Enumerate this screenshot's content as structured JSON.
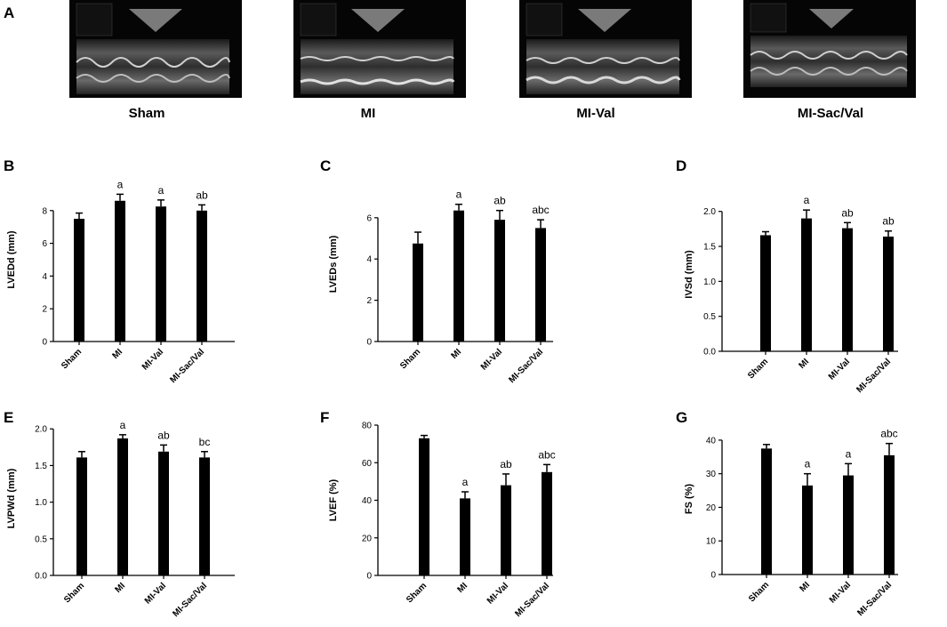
{
  "echo_panel": {
    "letter": "A",
    "images": [
      {
        "label": "Sham"
      },
      {
        "label": "MI"
      },
      {
        "label": "MI-Val"
      },
      {
        "label": "MI-Sac/Val"
      }
    ]
  },
  "chart_data": [
    {
      "panel": "B",
      "type": "bar",
      "categories": [
        "Sham",
        "MI",
        "MI-Val",
        "MI-Sac/Val"
      ],
      "values": [
        7.5,
        8.6,
        8.25,
        8.0
      ],
      "errors": [
        0.35,
        0.4,
        0.4,
        0.35
      ],
      "annotations": [
        "",
        "a",
        "a",
        "ab"
      ],
      "ylabel": "LVEDd (mm)",
      "ylim": [
        0,
        10
      ],
      "yticks": [
        "0",
        "2",
        "4",
        "6",
        "8"
      ],
      "ytick_values": [
        0,
        2,
        4,
        6,
        8
      ],
      "bar_color": "#000000",
      "grid": false
    },
    {
      "panel": "C",
      "type": "bar",
      "categories": [
        "Sham",
        "MI",
        "MI-Val",
        "MI-Sac/Val"
      ],
      "values": [
        4.75,
        6.35,
        5.9,
        5.5
      ],
      "errors": [
        0.55,
        0.3,
        0.45,
        0.4
      ],
      "annotations": [
        "",
        "a",
        "ab",
        "abc"
      ],
      "ylabel": "LVEDs (mm)",
      "ylim": [
        0,
        7.5
      ],
      "yticks": [
        "0",
        "2",
        "4",
        "6"
      ],
      "ytick_values": [
        0,
        2,
        4,
        6
      ],
      "bar_color": "#000000",
      "grid": false
    },
    {
      "panel": "D",
      "type": "bar",
      "categories": [
        "Sham",
        "MI",
        "MI-Val",
        "MI-Sac/Val"
      ],
      "values": [
        1.66,
        1.9,
        1.76,
        1.64
      ],
      "errors": [
        0.05,
        0.12,
        0.08,
        0.08
      ],
      "annotations": [
        "",
        "a",
        "ab",
        "ab"
      ],
      "ylabel": "IVSd (mm)",
      "ylim": [
        0,
        2.2
      ],
      "yticks": [
        "0.0",
        "0.5",
        "1.0",
        "1.5",
        "2.0"
      ],
      "ytick_values": [
        0,
        0.5,
        1.0,
        1.5,
        2.0
      ],
      "bar_color": "#000000",
      "grid": false
    },
    {
      "panel": "E",
      "type": "bar",
      "categories": [
        "Sham",
        "MI",
        "MI-Val",
        "MI-Sac/Val"
      ],
      "values": [
        1.61,
        1.87,
        1.69,
        1.61
      ],
      "errors": [
        0.08,
        0.05,
        0.09,
        0.08
      ],
      "annotations": [
        "",
        "a",
        "ab",
        "bc"
      ],
      "ylabel": "LVPWd (mm)",
      "ylim": [
        0,
        2.1
      ],
      "yticks": [
        "0.0",
        "0.5",
        "1.0",
        "1.5",
        "2.0"
      ],
      "ytick_values": [
        0,
        0.5,
        1.0,
        1.5,
        2.0
      ],
      "bar_color": "#000000",
      "grid": false
    },
    {
      "panel": "F",
      "type": "bar",
      "categories": [
        "Sham",
        "MI",
        "MI-Val",
        "MI-Sac/Val"
      ],
      "values": [
        73,
        41,
        48,
        55
      ],
      "errors": [
        1.5,
        3.5,
        6,
        4
      ],
      "annotations": [
        "",
        "a",
        "ab",
        "abc"
      ],
      "ylabel": "LVEF (%)",
      "ylim": [
        0,
        80
      ],
      "yticks": [
        "0",
        "20",
        "40",
        "60",
        "80"
      ],
      "ytick_values": [
        0,
        20,
        40,
        60,
        80
      ],
      "bar_color": "#000000",
      "grid": false
    },
    {
      "panel": "G",
      "type": "bar",
      "categories": [
        "Sham",
        "MI",
        "MI-Val",
        "MI-Sac/Val"
      ],
      "values": [
        37.5,
        26.5,
        29.5,
        35.5
      ],
      "errors": [
        1.2,
        3.5,
        3.5,
        3.5
      ],
      "annotations": [
        "",
        "a",
        "a",
        "abc"
      ],
      "ylabel": "FS (%)",
      "ylim": [
        0,
        45
      ],
      "yticks": [
        "0",
        "10",
        "20",
        "30",
        "40"
      ],
      "ytick_values": [
        0,
        10,
        20,
        30,
        40
      ],
      "bar_color": "#000000",
      "grid": false
    }
  ]
}
